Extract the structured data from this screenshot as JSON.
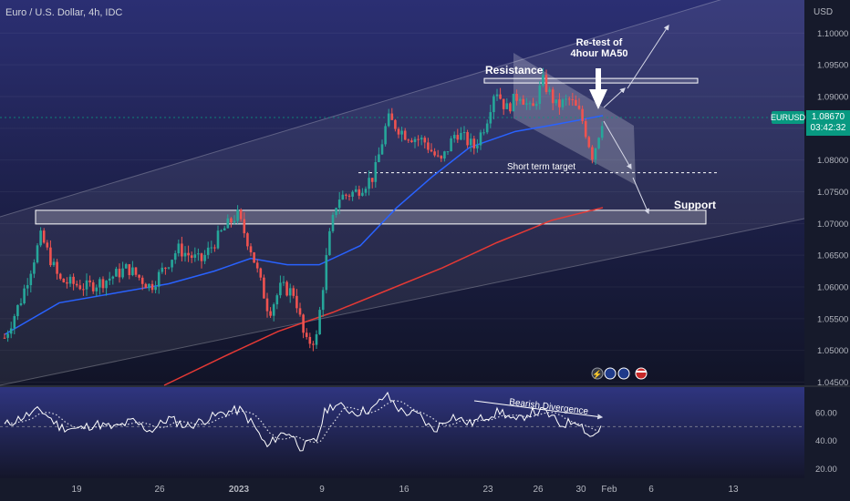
{
  "header": {
    "symbol_title": "Euro / U.S. Dollar, 4h, IDC"
  },
  "axis": {
    "currency": "USD",
    "y_ticks": [
      1.1,
      1.095,
      1.09,
      1.085,
      1.08,
      1.075,
      1.07,
      1.065,
      1.06,
      1.055,
      1.05,
      1.045
    ],
    "y_tick_labels": [
      "1.10000",
      "1.09500",
      "1.09000",
      "1.08500",
      "1.08000",
      "1.07500",
      "1.07000",
      "1.06500",
      "1.06000",
      "1.05500",
      "1.05000",
      "1.04500"
    ],
    "x_labels": [
      "19",
      "26",
      "2023",
      "9",
      "16",
      "23",
      "26",
      "30",
      "Feb",
      "6",
      "13"
    ],
    "rsi_ticks": [
      60,
      40,
      20
    ],
    "rsi_tick_labels": [
      "60.00",
      "40.00",
      "20.00"
    ]
  },
  "price_badge": {
    "symbol": "EURUSD",
    "price": "1.08670",
    "countdown": "03:42:32"
  },
  "annotations": {
    "resistance": "Resistance",
    "support": "Support",
    "short_term_target": "Short term target",
    "retest_line1": "Re-test of",
    "retest_line2": "4hour MA50",
    "bearish_divergence": "Bearish Divergence"
  },
  "colors": {
    "background": "#131722",
    "bull_candle": "#26a69a",
    "bear_candle": "#ef5350",
    "ma50": "#2962ff",
    "ma200": "#e53935",
    "rsi_line": "#ffffff",
    "badge": "#089981"
  },
  "chart_data": {
    "type": "candlestick",
    "title": "Euro / U.S. Dollar, 4h, IDC",
    "ylim": [
      1.0445,
      1.1045
    ],
    "rsi_ylim": [
      15,
      75
    ],
    "levels": {
      "resistance": 1.0925,
      "support": 1.071,
      "short_term_target": 1.078,
      "last_price": 1.0867
    },
    "key_points": [
      {
        "x": 0,
        "y": 1.052
      },
      {
        "x": 18,
        "y": 1.058
      },
      {
        "x": 40,
        "y": 1.068
      },
      {
        "x": 60,
        "y": 1.061
      },
      {
        "x": 90,
        "y": 1.06
      },
      {
        "x": 110,
        "y": 1.061
      },
      {
        "x": 135,
        "y": 1.063
      },
      {
        "x": 160,
        "y": 1.06
      },
      {
        "x": 190,
        "y": 1.066
      },
      {
        "x": 215,
        "y": 1.064
      },
      {
        "x": 240,
        "y": 1.069
      },
      {
        "x": 255,
        "y": 1.0715
      },
      {
        "x": 270,
        "y": 1.066
      },
      {
        "x": 290,
        "y": 1.056
      },
      {
        "x": 303,
        "y": 1.06
      },
      {
        "x": 318,
        "y": 1.059
      },
      {
        "x": 330,
        "y": 1.051
      },
      {
        "x": 342,
        "y": 1.052
      },
      {
        "x": 355,
        "y": 1.067
      },
      {
        "x": 365,
        "y": 1.074
      },
      {
        "x": 385,
        "y": 1.075
      },
      {
        "x": 405,
        "y": 1.0775
      },
      {
        "x": 420,
        "y": 1.0865
      },
      {
        "x": 440,
        "y": 1.084
      },
      {
        "x": 460,
        "y": 1.083
      },
      {
        "x": 478,
        "y": 1.0795
      },
      {
        "x": 495,
        "y": 1.0845
      },
      {
        "x": 515,
        "y": 1.082
      },
      {
        "x": 528,
        "y": 1.086
      },
      {
        "x": 538,
        "y": 1.0915
      },
      {
        "x": 550,
        "y": 1.088
      },
      {
        "x": 565,
        "y": 1.0905
      },
      {
        "x": 578,
        "y": 1.0875
      },
      {
        "x": 590,
        "y": 1.0925
      },
      {
        "x": 605,
        "y": 1.0885
      },
      {
        "x": 620,
        "y": 1.0895
      },
      {
        "x": 632,
        "y": 1.087
      },
      {
        "x": 645,
        "y": 1.0805
      },
      {
        "x": 656,
        "y": 1.0867
      }
    ],
    "ma50": [
      {
        "x": 0,
        "y": 1.0525
      },
      {
        "x": 60,
        "y": 1.0575
      },
      {
        "x": 120,
        "y": 1.059
      },
      {
        "x": 180,
        "y": 1.0605
      },
      {
        "x": 230,
        "y": 1.0625
      },
      {
        "x": 270,
        "y": 1.0645
      },
      {
        "x": 310,
        "y": 1.0635
      },
      {
        "x": 345,
        "y": 1.0635
      },
      {
        "x": 390,
        "y": 1.0665
      },
      {
        "x": 430,
        "y": 1.0725
      },
      {
        "x": 470,
        "y": 1.0775
      },
      {
        "x": 510,
        "y": 1.082
      },
      {
        "x": 560,
        "y": 1.0845
      },
      {
        "x": 600,
        "y": 1.0855
      },
      {
        "x": 656,
        "y": 1.087
      }
    ],
    "ma200": [
      {
        "x": 175,
        "y": 1.0445
      },
      {
        "x": 240,
        "y": 1.049
      },
      {
        "x": 300,
        "y": 1.053
      },
      {
        "x": 360,
        "y": 1.056
      },
      {
        "x": 420,
        "y": 1.0595
      },
      {
        "x": 480,
        "y": 1.063
      },
      {
        "x": 540,
        "y": 1.067
      },
      {
        "x": 600,
        "y": 1.0705
      },
      {
        "x": 656,
        "y": 1.0725
      }
    ],
    "rsi": [
      {
        "x": 0,
        "y": 51
      },
      {
        "x": 20,
        "y": 57
      },
      {
        "x": 40,
        "y": 62
      },
      {
        "x": 60,
        "y": 50
      },
      {
        "x": 80,
        "y": 48
      },
      {
        "x": 100,
        "y": 52
      },
      {
        "x": 120,
        "y": 49
      },
      {
        "x": 140,
        "y": 54
      },
      {
        "x": 160,
        "y": 47
      },
      {
        "x": 180,
        "y": 56
      },
      {
        "x": 200,
        "y": 50
      },
      {
        "x": 220,
        "y": 55
      },
      {
        "x": 240,
        "y": 60
      },
      {
        "x": 258,
        "y": 62
      },
      {
        "x": 272,
        "y": 52
      },
      {
        "x": 288,
        "y": 35
      },
      {
        "x": 300,
        "y": 44
      },
      {
        "x": 312,
        "y": 46
      },
      {
        "x": 325,
        "y": 35
      },
      {
        "x": 342,
        "y": 40
      },
      {
        "x": 352,
        "y": 62
      },
      {
        "x": 362,
        "y": 66
      },
      {
        "x": 385,
        "y": 60
      },
      {
        "x": 405,
        "y": 63
      },
      {
        "x": 418,
        "y": 73
      },
      {
        "x": 435,
        "y": 61
      },
      {
        "x": 455,
        "y": 58
      },
      {
        "x": 470,
        "y": 47
      },
      {
        "x": 490,
        "y": 58
      },
      {
        "x": 510,
        "y": 52
      },
      {
        "x": 530,
        "y": 58
      },
      {
        "x": 545,
        "y": 61
      },
      {
        "x": 560,
        "y": 53
      },
      {
        "x": 575,
        "y": 60
      },
      {
        "x": 592,
        "y": 61
      },
      {
        "x": 610,
        "y": 51
      },
      {
        "x": 628,
        "y": 55
      },
      {
        "x": 643,
        "y": 42
      },
      {
        "x": 656,
        "y": 51
      }
    ]
  }
}
